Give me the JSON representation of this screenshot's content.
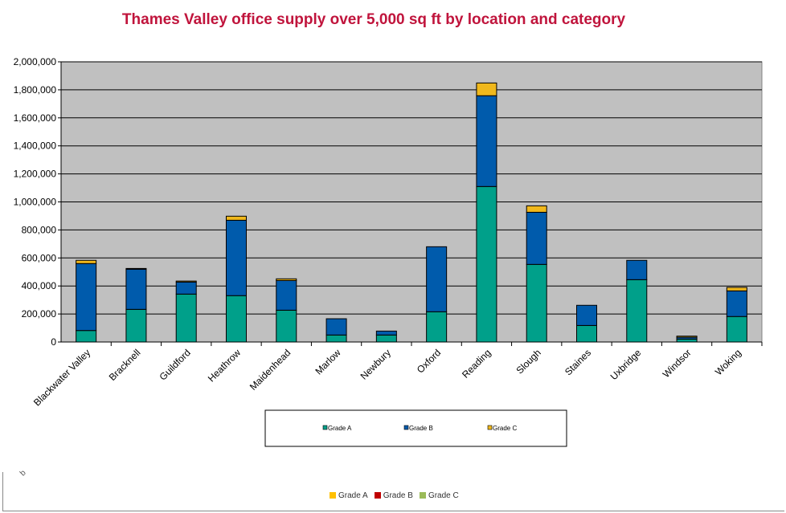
{
  "chart_data": {
    "type": "bar",
    "stacked": true,
    "title": "Thames Valley office supply over 5,000 sq ft by location and category",
    "title_color": "#C0143C",
    "categories": [
      "Blackwater Valley",
      "Bracknell",
      "Guildford",
      "Heathrow",
      "Maidenhead",
      "Marlow",
      "Newbury",
      "Oxford",
      "Reading",
      "Slough",
      "Staines",
      "Uxbridge",
      "Windsor",
      "Woking"
    ],
    "series": [
      {
        "name": "Grade A",
        "color": "#00A08A",
        "values": [
          82000,
          233000,
          342000,
          331000,
          227000,
          50000,
          50000,
          216000,
          1110000,
          554000,
          118000,
          445000,
          21000,
          182000
        ]
      },
      {
        "name": "Grade B",
        "color": "#005BAC",
        "values": [
          478000,
          287000,
          86000,
          538000,
          212000,
          116000,
          28000,
          464000,
          648000,
          372000,
          144000,
          138000,
          13000,
          183000
        ]
      },
      {
        "name": "Grade C",
        "color": "#F0B81C",
        "values": [
          23000,
          5000,
          7000,
          29000,
          12000,
          0,
          0,
          0,
          91000,
          46000,
          0,
          0,
          8000,
          25000
        ]
      }
    ],
    "ylim": [
      0,
      2000000
    ],
    "yticks": [
      "0",
      "200,000",
      "400,000",
      "600,000",
      "800,000",
      "1,000,000",
      "1,200,000",
      "1,400,000",
      "1,600,000",
      "1,800,000",
      "2,000,000"
    ],
    "grid": true,
    "plot_background": "#C0C0C0",
    "legend_placement": "bottom"
  },
  "secondary_legend": [
    {
      "name": "Grade A",
      "color": "#FFC000"
    },
    {
      "name": "Grade B",
      "color": "#C00000"
    },
    {
      "name": "Grade C",
      "color": "#9BBB59"
    }
  ],
  "stray_text": "b"
}
